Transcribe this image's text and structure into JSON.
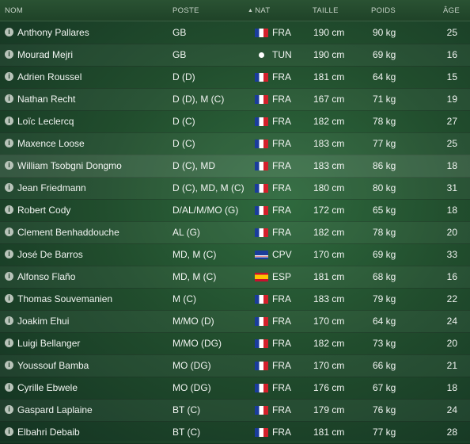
{
  "columns": {
    "name": "NOM",
    "position": "POSTE",
    "nationality": "NAT",
    "height": "TAILLE",
    "weight": "POIDS",
    "age": "ÂGE"
  },
  "players": [
    {
      "name": "Anthony Pallares",
      "position": "GB",
      "flag": "fra",
      "nat": "FRA",
      "height": "190 cm",
      "weight": "90 kg",
      "age": "25"
    },
    {
      "name": "Mourad Mejri",
      "position": "GB",
      "flag": "tun",
      "nat": "TUN",
      "height": "190 cm",
      "weight": "69 kg",
      "age": "16"
    },
    {
      "name": "Adrien Roussel",
      "position": "D (D)",
      "flag": "fra",
      "nat": "FRA",
      "height": "181 cm",
      "weight": "64 kg",
      "age": "15"
    },
    {
      "name": "Nathan Recht",
      "position": "D (D), M (C)",
      "flag": "fra",
      "nat": "FRA",
      "height": "167 cm",
      "weight": "71 kg",
      "age": "19"
    },
    {
      "name": "Loïc Leclercq",
      "position": "D (C)",
      "flag": "fra",
      "nat": "FRA",
      "height": "182 cm",
      "weight": "78 kg",
      "age": "27"
    },
    {
      "name": "Maxence Loose",
      "position": "D (C)",
      "flag": "fra",
      "nat": "FRA",
      "height": "183 cm",
      "weight": "77 kg",
      "age": "25"
    },
    {
      "name": "William Tsobgni Dongmo",
      "position": "D (C), MD",
      "flag": "fra",
      "nat": "FRA",
      "height": "183 cm",
      "weight": "86 kg",
      "age": "18"
    },
    {
      "name": "Jean Friedmann",
      "position": "D (C), MD, M (C)",
      "flag": "fra",
      "nat": "FRA",
      "height": "180 cm",
      "weight": "80 kg",
      "age": "31"
    },
    {
      "name": "Robert Cody",
      "position": "D/AL/M/MO (G)",
      "flag": "fra",
      "nat": "FRA",
      "height": "172 cm",
      "weight": "65 kg",
      "age": "18"
    },
    {
      "name": "Clement Benhaddouche",
      "position": "AL (G)",
      "flag": "fra",
      "nat": "FRA",
      "height": "182 cm",
      "weight": "78 kg",
      "age": "20"
    },
    {
      "name": "José De Barros",
      "position": "MD, M (C)",
      "flag": "cpv",
      "nat": "CPV",
      "height": "170 cm",
      "weight": "69 kg",
      "age": "33"
    },
    {
      "name": "Alfonso Flaño",
      "position": "MD, M (C)",
      "flag": "esp",
      "nat": "ESP",
      "height": "181 cm",
      "weight": "68 kg",
      "age": "16"
    },
    {
      "name": "Thomas Souvemanien",
      "position": "M (C)",
      "flag": "fra",
      "nat": "FRA",
      "height": "183 cm",
      "weight": "79 kg",
      "age": "22"
    },
    {
      "name": "Joakim Ehui",
      "position": "M/MO (D)",
      "flag": "fra",
      "nat": "FRA",
      "height": "170 cm",
      "weight": "64 kg",
      "age": "24"
    },
    {
      "name": "Luigi Bellanger",
      "position": "M/MO (DG)",
      "flag": "fra",
      "nat": "FRA",
      "height": "182 cm",
      "weight": "73 kg",
      "age": "20"
    },
    {
      "name": "Youssouf Bamba",
      "position": "MO (DG)",
      "flag": "fra",
      "nat": "FRA",
      "height": "170 cm",
      "weight": "66 kg",
      "age": "21"
    },
    {
      "name": "Cyrille Ebwele",
      "position": "MO (DG)",
      "flag": "fra",
      "nat": "FRA",
      "height": "176 cm",
      "weight": "67 kg",
      "age": "18"
    },
    {
      "name": "Gaspard Laplaine",
      "position": "BT (C)",
      "flag": "fra",
      "nat": "FRA",
      "height": "179 cm",
      "weight": "76 kg",
      "age": "24"
    },
    {
      "name": "Elbahri Debaib",
      "position": "BT (C)",
      "flag": "fra",
      "nat": "FRA",
      "height": "181 cm",
      "weight": "77 kg",
      "age": "28"
    }
  ]
}
